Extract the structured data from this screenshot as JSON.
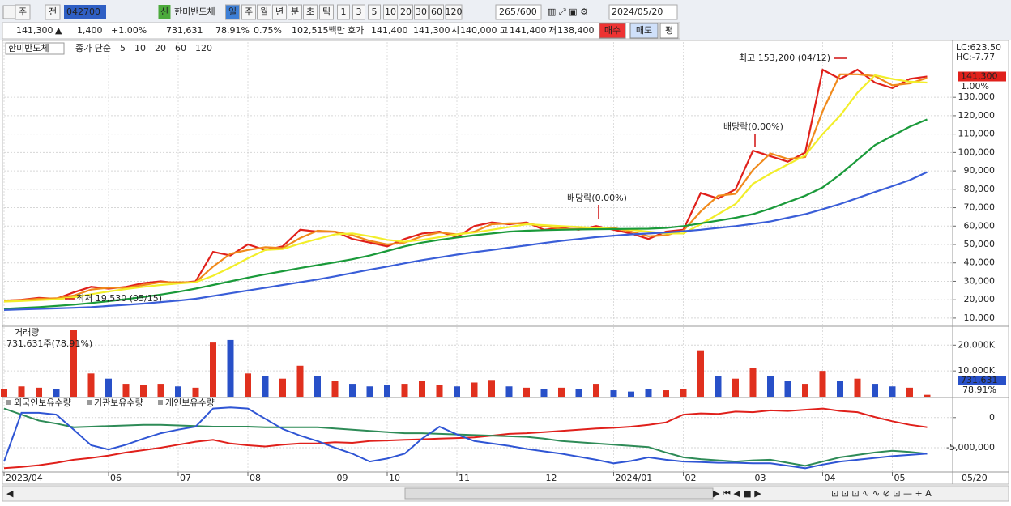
{
  "toolbar": {
    "items": [
      "주",
      "전",
      "042700",
      "신",
      "한미반도체",
      "일",
      "주",
      "월",
      "년",
      "분",
      "초",
      "틱",
      "1",
      "3",
      "5",
      "10",
      "20",
      "30",
      "60",
      "120"
    ],
    "count": "265",
    "max": "/600",
    "date": "2024/05/20"
  },
  "quote": {
    "items": [
      "141,300",
      "▲",
      "1,400",
      "+1.00%",
      "731,631",
      "78.91%",
      "0.75%",
      "102,515백만",
      "호가",
      "141,400",
      "141,300",
      "시",
      "140,000",
      "고",
      "141,400",
      "저",
      "138,400"
    ],
    "buttons": [
      "매수",
      "매도",
      "평"
    ]
  },
  "x_axis": {
    "categories": [
      "2023/04",
      null,
      null,
      null,
      null,
      null,
      "06",
      null,
      null,
      null,
      "07",
      null,
      null,
      null,
      "08",
      null,
      null,
      null,
      null,
      "09",
      null,
      null,
      "10",
      null,
      null,
      null,
      "11",
      null,
      null,
      null,
      null,
      "12",
      null,
      null,
      null,
      "2024/01",
      null,
      null,
      null,
      "02",
      null,
      null,
      null,
      "03",
      null,
      null,
      null,
      "04",
      null,
      null,
      null,
      "05",
      null,
      null
    ],
    "end_label": "05/20"
  },
  "chart_data": [
    {
      "type": "line",
      "legend_title": "한미반도체",
      "legend_label": "종가 단순",
      "ylim": [
        6000,
        160000
      ],
      "yticks": [
        {
          "value": 10000,
          "label": "10,000"
        },
        {
          "value": 20000,
          "label": "20,000"
        },
        {
          "value": 30000,
          "label": "30,000"
        },
        {
          "value": 40000,
          "label": "40,000"
        },
        {
          "value": 50000,
          "label": "50,000"
        },
        {
          "value": 60000,
          "label": "60,000"
        },
        {
          "value": 70000,
          "label": "70,000"
        },
        {
          "value": 80000,
          "label": "80,000"
        },
        {
          "value": 90000,
          "label": "90,000"
        },
        {
          "value": 100000,
          "label": "100,000"
        },
        {
          "value": 110000,
          "label": "110,000"
        },
        {
          "value": 120000,
          "label": "120,000"
        },
        {
          "value": 130000,
          "label": "130,000"
        }
      ],
      "grid": true,
      "annotations": [
        "최고 153,200 (04/12)",
        "배당락(0.00%)",
        "배당락(0.00%)",
        "최저 19,530 (05/15)",
        "LC:623.50",
        "HC:-7.77",
        "1.00%"
      ],
      "series": [
        {
          "name": "5",
          "color": "#e0201b",
          "values": [
            19500,
            20000,
            21000,
            20500,
            24000,
            27000,
            26000,
            27000,
            29000,
            30000,
            29000,
            30000,
            46000,
            44000,
            50000,
            47000,
            49000,
            58000,
            57000,
            57000,
            53000,
            51000,
            49000,
            53000,
            56000,
            57000,
            54000,
            60000,
            62000,
            61000,
            62000,
            58000,
            59000,
            58000,
            60000,
            58000,
            56000,
            53000,
            57000,
            58000,
            78000,
            75000,
            80000,
            101000,
            98000,
            95000,
            100000,
            145000,
            140000,
            145000,
            138000,
            135000,
            140000,
            141300
          ],
          "value_labels": [
            null,
            null,
            null,
            null,
            null,
            null,
            null,
            null,
            null,
            null,
            null,
            null,
            null,
            null,
            null,
            null,
            null,
            null,
            null,
            null,
            null,
            null,
            null,
            null,
            null,
            null,
            null,
            null,
            null,
            null,
            null,
            null,
            null,
            null,
            null,
            null,
            null,
            null,
            null,
            null,
            null,
            null,
            null,
            null,
            null,
            null,
            null,
            null,
            null,
            null,
            null,
            null,
            null,
            "141,300"
          ]
        },
        {
          "name": "10",
          "color": "#f08a1c",
          "values": [
            19500,
            19800,
            20500,
            20800,
            22300,
            25500,
            26500,
            26500,
            28000,
            29500,
            29500,
            29500,
            38000,
            45000,
            47000,
            48500,
            48000,
            53500,
            57500,
            57000,
            55000,
            52000,
            50000,
            51000,
            54500,
            56500,
            55500,
            57000,
            61000,
            61500,
            61500,
            60000,
            58500,
            58500,
            59000,
            59000,
            57000,
            54500,
            55000,
            57500,
            68000,
            76500,
            77500,
            90500,
            99500,
            96500,
            97500,
            122500,
            142500,
            142500,
            141500,
            136500,
            137500,
            140500
          ]
        },
        {
          "name": "20",
          "color": "#f2ee2a",
          "values": [
            19000,
            19300,
            19800,
            20200,
            21300,
            23000,
            24500,
            25800,
            27000,
            28000,
            28800,
            29500,
            33000,
            37500,
            42500,
            47000,
            47500,
            50500,
            53000,
            55500,
            56000,
            54500,
            52500,
            51500,
            52500,
            54000,
            55500,
            56500,
            58000,
            59500,
            61000,
            60500,
            60000,
            59500,
            59000,
            58500,
            58000,
            57000,
            56000,
            56000,
            61000,
            66500,
            72000,
            83000,
            88500,
            93500,
            98500,
            110000,
            120000,
            132500,
            142000,
            140000,
            138500,
            138000
          ]
        },
        {
          "name": "60",
          "color": "#1a9a3a",
          "values": [
            15000,
            15500,
            16000,
            16600,
            17300,
            18200,
            19200,
            20300,
            21500,
            22800,
            24300,
            26000,
            28000,
            30000,
            32000,
            33800,
            35500,
            37200,
            38800,
            40300,
            42000,
            44000,
            46500,
            49000,
            51000,
            52500,
            53800,
            55000,
            56000,
            57000,
            57500,
            57800,
            58000,
            58200,
            58300,
            58400,
            58500,
            58600,
            59000,
            60000,
            61500,
            63000,
            64500,
            66500,
            69500,
            73000,
            76500,
            81000,
            88000,
            96000,
            104000,
            109000,
            114000,
            118000
          ]
        },
        {
          "name": "120",
          "color": "#3a5ed8",
          "values": [
            14400,
            14700,
            15000,
            15300,
            15600,
            16000,
            16600,
            17200,
            17900,
            18700,
            19500,
            20500,
            22000,
            23500,
            25000,
            26500,
            28000,
            29500,
            31000,
            32700,
            34500,
            36300,
            38000,
            39800,
            41500,
            43000,
            44500,
            45800,
            47000,
            48300,
            49500,
            50800,
            52000,
            53000,
            54000,
            54800,
            55500,
            56000,
            56500,
            57200,
            58000,
            59000,
            60000,
            61200,
            62500,
            64500,
            66500,
            69200,
            72000,
            75200,
            78500,
            81700,
            85000,
            89400
          ]
        }
      ]
    },
    {
      "type": "bar",
      "legend_title": "거래량",
      "legend_label": "731,631주(78.91%)",
      "ylim": [
        0,
        27000
      ],
      "yticks": [
        {
          "value": 10000,
          "label": "10,000K"
        },
        {
          "value": 20000,
          "label": "20,000K"
        }
      ],
      "grid": true,
      "annotations": [
        "78.91%"
      ],
      "values": [
        3000,
        4000,
        3500,
        3000,
        26000,
        9000,
        7000,
        5000,
        4500,
        5000,
        4000,
        3500,
        21000,
        22000,
        9000,
        8000,
        7000,
        12000,
        8000,
        6000,
        5000,
        4000,
        4500,
        5000,
        6000,
        4500,
        4000,
        5500,
        6500,
        4000,
        3500,
        3000,
        3500,
        3000,
        5000,
        2500,
        2000,
        3000,
        2500,
        3000,
        18000,
        8000,
        7000,
        11000,
        8000,
        6000,
        5000,
        10000,
        6000,
        7000,
        5000,
        4000,
        3500,
        731.631
      ],
      "value_labels": [
        null,
        null,
        null,
        null,
        null,
        null,
        null,
        null,
        null,
        null,
        null,
        null,
        null,
        null,
        null,
        null,
        null,
        null,
        null,
        null,
        null,
        null,
        null,
        null,
        null,
        null,
        null,
        null,
        null,
        null,
        null,
        null,
        null,
        null,
        null,
        null,
        null,
        null,
        null,
        null,
        null,
        null,
        null,
        null,
        null,
        null,
        null,
        null,
        null,
        null,
        null,
        null,
        null,
        "731,631"
      ]
    },
    {
      "type": "line",
      "ylim": [
        -8900000,
        3200000
      ],
      "yticks": [
        0,
        {
          "value": -5000000,
          "label": "-5,000,000"
        }
      ],
      "grid": true,
      "series": [
        {
          "name": "외국인보유수량",
          "color": "#e0201b",
          "values": [
            -8400000,
            -8200000,
            -7900000,
            -7500000,
            -7000000,
            -6700000,
            -6300000,
            -5800000,
            -5400000,
            -5000000,
            -4500000,
            -4000000,
            -3700000,
            -4300000,
            -4600000,
            -4800000,
            -4500000,
            -4300000,
            -4300000,
            -4100000,
            -4200000,
            -3900000,
            -3800000,
            -3700000,
            -3600000,
            -3500000,
            -3400000,
            -3300000,
            -3000000,
            -2700000,
            -2600000,
            -2400000,
            -2200000,
            -2000000,
            -1800000,
            -1700000,
            -1500000,
            -1200000,
            -800000,
            500000,
            700000,
            600000,
            1000000,
            900000,
            1200000,
            1100000,
            1300000,
            1500000,
            1100000,
            900000,
            100000,
            -600000,
            -1200000,
            -1600000
          ]
        },
        {
          "name": "기관보유수량",
          "color": "#2e8b57",
          "values": [
            1500000,
            500000,
            -500000,
            -1000000,
            -1600000,
            -1500000,
            -1400000,
            -1300000,
            -1200000,
            -1200000,
            -1300000,
            -1400000,
            -1500000,
            -1500000,
            -1500000,
            -1600000,
            -1600000,
            -1600000,
            -1600000,
            -1800000,
            -2000000,
            -2200000,
            -2400000,
            -2600000,
            -2600000,
            -2700000,
            -2800000,
            -2900000,
            -3000000,
            -3100000,
            -3200000,
            -3500000,
            -3900000,
            -4100000,
            -4300000,
            -4500000,
            -4700000,
            -4900000,
            -5800000,
            -6600000,
            -6900000,
            -7100000,
            -7300000,
            -7100000,
            -7000000,
            -7500000,
            -8000000,
            -7300000,
            -6600000,
            -6200000,
            -5800000,
            -5500000,
            -5700000,
            -6000000
          ]
        },
        {
          "name": "개인보유수량",
          "color": "#2f55d4",
          "values": [
            -7300000,
            800000,
            800000,
            500000,
            -2000000,
            -4600000,
            -5300000,
            -4500000,
            -3500000,
            -2600000,
            -2000000,
            -1500000,
            1500000,
            1700000,
            1500000,
            -200000,
            -1900000,
            -3000000,
            -3900000,
            -5000000,
            -6000000,
            -7300000,
            -6800000,
            -6000000,
            -3500000,
            -1500000,
            -2800000,
            -3900000,
            -4300000,
            -4700000,
            -5200000,
            -5600000,
            -6000000,
            -6500000,
            -7000000,
            -7600000,
            -7200000,
            -6600000,
            -7000000,
            -7300000,
            -7400000,
            -7500000,
            -7500000,
            -7600000,
            -7600000,
            -8000000,
            -8400000,
            -7800000,
            -7300000,
            -7000000,
            -6700000,
            -6400000,
            -6200000,
            -6000000
          ]
        }
      ]
    }
  ]
}
